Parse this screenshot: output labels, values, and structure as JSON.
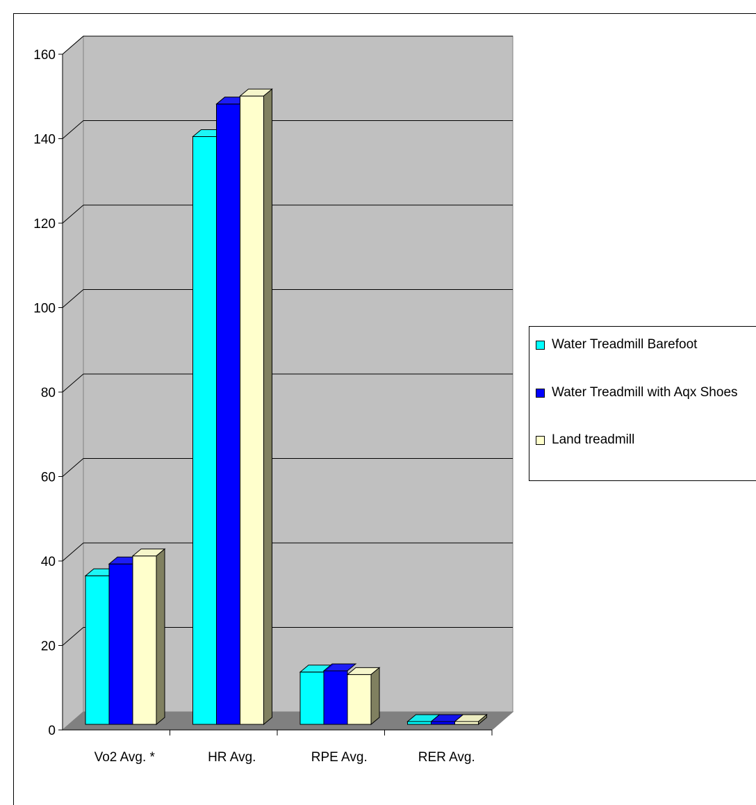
{
  "chart_data": {
    "type": "bar",
    "title": "",
    "xlabel": "",
    "ylabel": "",
    "categories": [
      "Vo2 Avg. *",
      "HR Avg.",
      "RPE Avg.",
      "RER Avg."
    ],
    "series": [
      {
        "name": "Water Treadmill Barefoot",
        "values": [
          36.5,
          140.5,
          13.7,
          1.0
        ],
        "color": "#00ffff"
      },
      {
        "name": "Water Treadmill with Aqx Shoes",
        "values": [
          39.3,
          148.2,
          14.0,
          1.0
        ],
        "color": "#0000ff"
      },
      {
        "name": "Land treadmill",
        "values": [
          41.2,
          150.1,
          13.1,
          1.0
        ],
        "color": "#ffffcc"
      }
    ],
    "ylim": [
      0,
      160
    ],
    "yticks": [
      "0",
      "20",
      "40",
      "60",
      "80",
      "100",
      "120",
      "140",
      "160"
    ],
    "grid": true,
    "legend_position": "right",
    "colors": {
      "wall": "#c0c0c0",
      "floor": "#808080",
      "bar_side": "#808060",
      "grid": "#000000"
    }
  }
}
